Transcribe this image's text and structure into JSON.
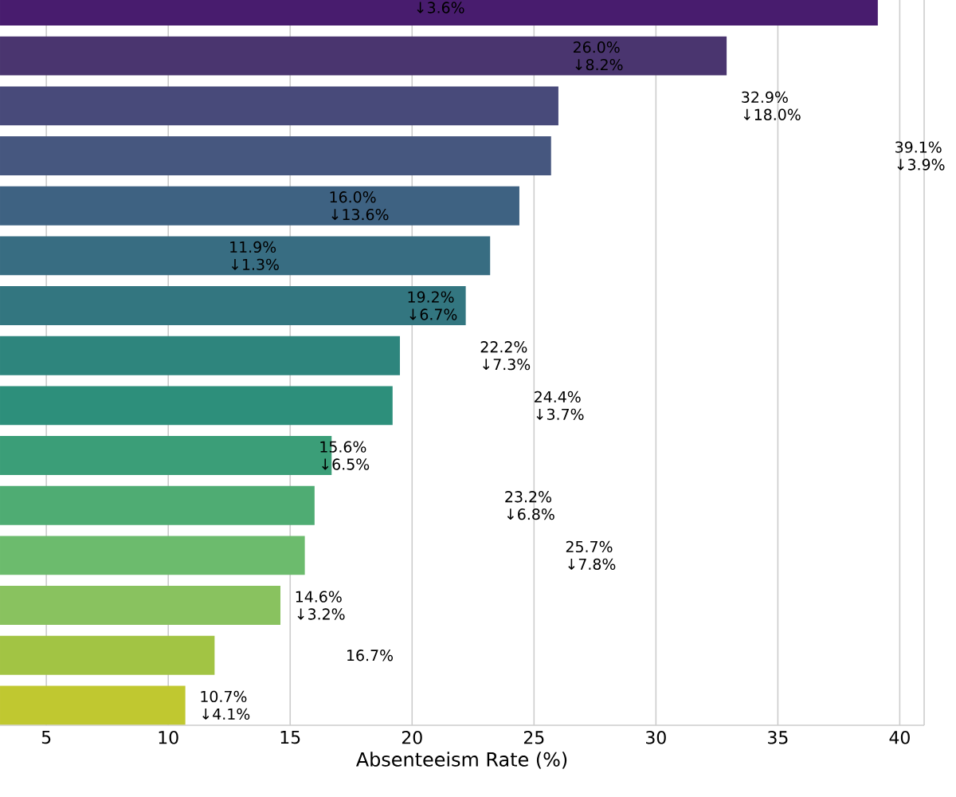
{
  "chart_data": {
    "type": "bar",
    "orientation": "horizontal",
    "xlabel": "Absenteeism Rate (%)",
    "categories": [
      null,
      null,
      null,
      null,
      null,
      null,
      null,
      null,
      null,
      null,
      null,
      null,
      null,
      null,
      null
    ],
    "values": [
      39.1,
      32.9,
      26.0,
      25.7,
      24.4,
      23.2,
      22.2,
      19.5,
      19.2,
      16.7,
      16.0,
      15.6,
      14.6,
      11.9,
      10.7
    ],
    "colors": [
      "#481c6e",
      "#4a356f",
      "#484a7a",
      "#46577f",
      "#3e6282",
      "#386d82",
      "#337680",
      "#2e857d",
      "#2d8f7b",
      "#3b9e78",
      "#4fac73",
      "#6cbb6d",
      "#89c25f",
      "#a2c444",
      "#c0c830"
    ],
    "xlim": [
      3.1,
      41.0
    ],
    "xticks": [
      5,
      10,
      15,
      20,
      25,
      30,
      35,
      40
    ],
    "grid": "x",
    "annotations": [
      "↓3.6%",
      "26.0%\n↓8.2%",
      "32.9%\n↓18.0%",
      "39.1%\n↓3.9%",
      "16.0%\n↓13.6%",
      "11.9%\n↓1.3%",
      "19.2%\n↓6.7%",
      "22.2%\n↓7.3%",
      "24.4%\n↓3.7%",
      "15.6%\n↓6.5%",
      "23.2%\n↓6.8%",
      "25.7%\n↓7.8%",
      "14.6%\n↓3.2%",
      "16.7%",
      "10.7%\n↓4.1%"
    ]
  }
}
